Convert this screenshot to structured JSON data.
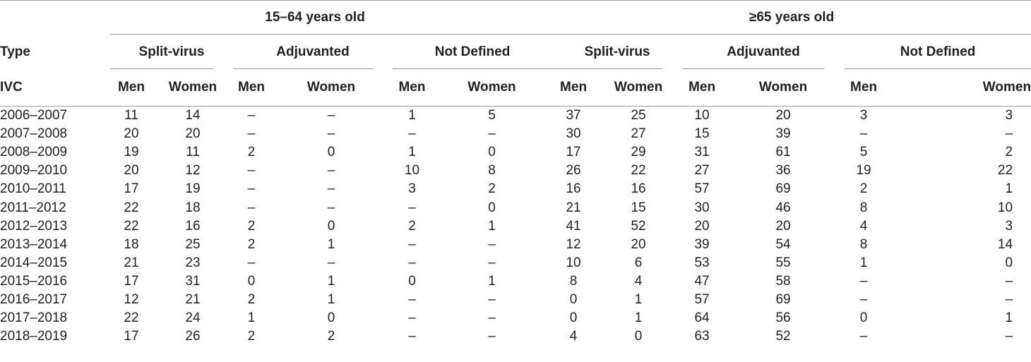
{
  "header": {
    "type_label": "Type",
    "ivc_label": "IVC",
    "age_groups": [
      "15–64 years old",
      "≥65 years old"
    ],
    "vaccine_types": [
      "Split-virus",
      "Adjuvanted",
      "Not Defined",
      "Split-virus",
      "Adjuvanted",
      "Not Defined"
    ],
    "sex_labels": [
      "Men",
      "Women",
      "Men",
      "Women",
      "Men",
      "Women",
      "Men",
      "Women",
      "Men",
      "Women",
      "Men",
      "Women"
    ]
  },
  "rows": [
    {
      "season": "2006–2007",
      "values": [
        "11",
        "14",
        "–",
        "–",
        "1",
        "5",
        "37",
        "25",
        "10",
        "20",
        "3",
        "3"
      ]
    },
    {
      "season": "2007–2008",
      "values": [
        "20",
        "20",
        "–",
        "–",
        "–",
        "–",
        "30",
        "27",
        "15",
        "39",
        "–",
        "–"
      ]
    },
    {
      "season": "2008–2009",
      "values": [
        "19",
        "11",
        "2",
        "0",
        "1",
        "0",
        "17",
        "29",
        "31",
        "61",
        "5",
        "2"
      ]
    },
    {
      "season": "2009–2010",
      "values": [
        "20",
        "12",
        "–",
        "–",
        "10",
        "8",
        "26",
        "22",
        "27",
        "36",
        "19",
        "22"
      ]
    },
    {
      "season": "2010–2011",
      "values": [
        "17",
        "19",
        "–",
        "–",
        "3",
        "2",
        "16",
        "16",
        "57",
        "69",
        "2",
        "1"
      ]
    },
    {
      "season": "2011–2012",
      "values": [
        "22",
        "18",
        "–",
        "–",
        "–",
        "0",
        "21",
        "15",
        "30",
        "46",
        "8",
        "10"
      ]
    },
    {
      "season": "2012–2013",
      "values": [
        "22",
        "16",
        "2",
        "0",
        "2",
        "1",
        "41",
        "52",
        "20",
        "20",
        "4",
        "3"
      ]
    },
    {
      "season": "2013–2014",
      "values": [
        "18",
        "25",
        "2",
        "1",
        "–",
        "–",
        "12",
        "20",
        "39",
        "54",
        "8",
        "14"
      ]
    },
    {
      "season": "2014–2015",
      "values": [
        "21",
        "23",
        "–",
        "–",
        "–",
        "–",
        "10",
        "6",
        "53",
        "55",
        "1",
        "0"
      ]
    },
    {
      "season": "2015–2016",
      "values": [
        "17",
        "31",
        "0",
        "1",
        "0",
        "1",
        "8",
        "4",
        "47",
        "58",
        "–",
        "–"
      ]
    },
    {
      "season": "2016–2017",
      "values": [
        "12",
        "21",
        "2",
        "1",
        "–",
        "–",
        "0",
        "1",
        "57",
        "69",
        "–",
        "–"
      ]
    },
    {
      "season": "2017–2018",
      "values": [
        "22",
        "24",
        "1",
        "0",
        "–",
        "–",
        "0",
        "1",
        "64",
        "56",
        "0",
        "1"
      ]
    },
    {
      "season": "2018–2019",
      "values": [
        "17",
        "26",
        "2",
        "2",
        "–",
        "–",
        "4",
        "0",
        "63",
        "52",
        "–",
        "–"
      ]
    }
  ]
}
